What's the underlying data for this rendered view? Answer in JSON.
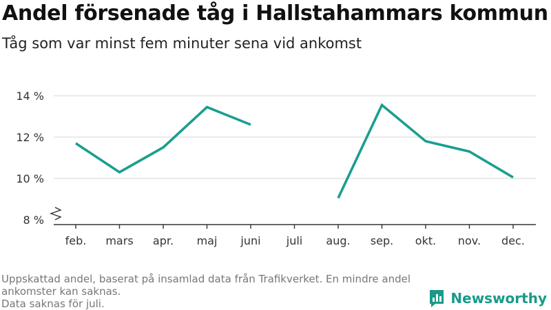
{
  "header": {
    "title": "Andel försenade tåg i Hallstahammars kommun",
    "subtitle": "Tåg som var minst fem minuter sena vid ankomst"
  },
  "footer": {
    "note_line1": "Uppskattad andel, baserat på insamlad data från Trafikverket. En mindre andel",
    "note_line2": "ankomster kan saknas.",
    "note_line3": "Data saknas för juli."
  },
  "brand": {
    "name": "Newsworthy",
    "color": "#1a9a8a"
  },
  "chart_data": {
    "type": "line",
    "categories": [
      "feb.",
      "mars",
      "apr.",
      "maj",
      "juni",
      "juli",
      "aug.",
      "sep.",
      "okt.",
      "nov.",
      "dec."
    ],
    "series": [
      {
        "values": [
          11.7,
          10.3,
          11.5,
          13.45,
          12.6,
          null,
          9.05,
          13.55,
          11.8,
          11.3,
          10.05
        ]
      }
    ],
    "ylim": [
      8,
      14
    ],
    "yticks": [
      8,
      10,
      12,
      14
    ],
    "ytick_labels": [
      "8 %",
      "10 %",
      "12 %",
      "14 %"
    ],
    "axis_break": true,
    "grid": true,
    "xlabel": "",
    "ylabel": "",
    "line_color": "#1a9e8f"
  }
}
